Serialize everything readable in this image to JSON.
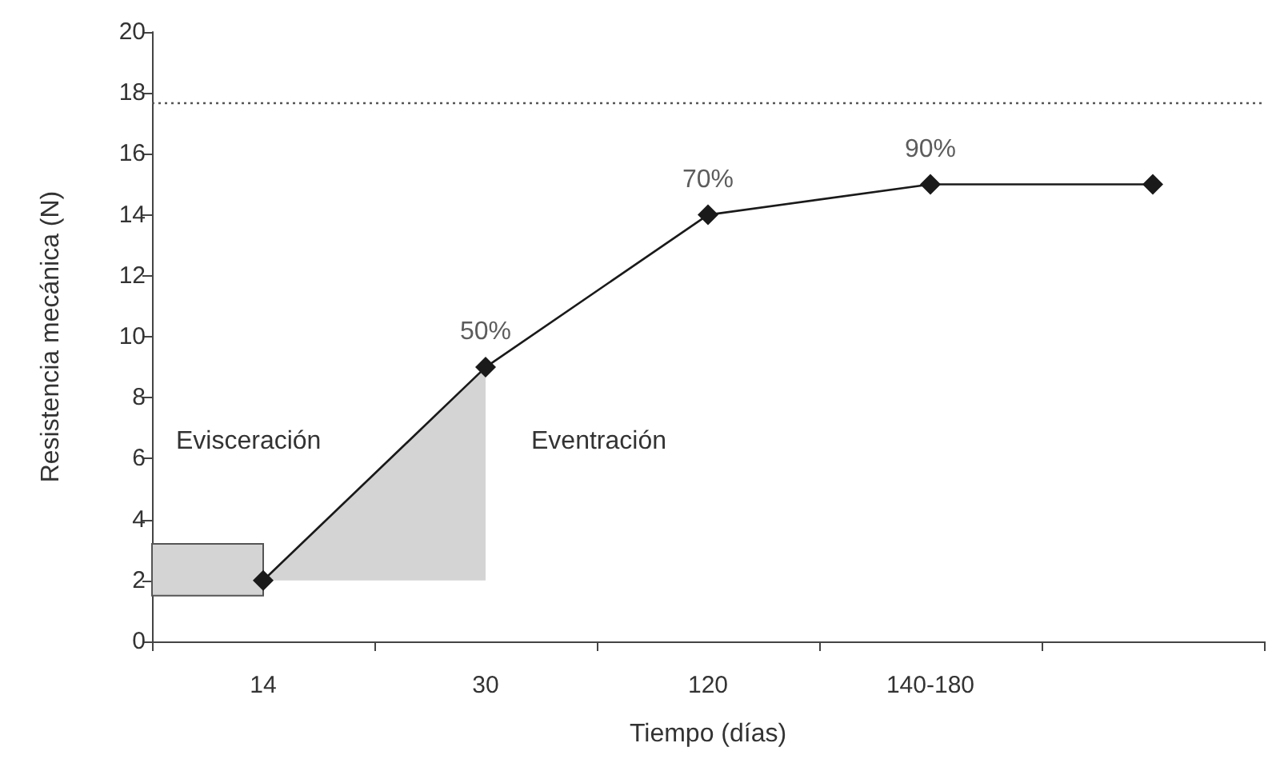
{
  "chart_data": {
    "type": "line",
    "xlabel": "Tiempo (días)",
    "ylabel": "Resistencia mecánica (N)",
    "categories": [
      "14",
      "30",
      "120",
      "140-180",
      null
    ],
    "series": [
      {
        "color": "#1a1a1a",
        "values": [
          2,
          9,
          14,
          15,
          15
        ],
        "lower": [
          2,
          2,
          null,
          null,
          null
        ],
        "upper": [
          2,
          9,
          null,
          null,
          null
        ],
        "marker": "diamond"
      }
    ],
    "ylim": [
      0,
      20
    ],
    "yticks": [
      0,
      2,
      4,
      6,
      8,
      10,
      12,
      14,
      16,
      18,
      20
    ],
    "grid": false,
    "ref_lines": [
      {
        "axis": "y",
        "value": 17.7,
        "line_style": "dotted",
        "color": "#555555"
      }
    ],
    "bands": [
      {
        "axis": "y",
        "from": 1.5,
        "to": 3.2,
        "color": "#d4d4d4"
      }
    ],
    "annotations": [
      {
        "text": "50%",
        "x": "30",
        "y": 9
      },
      {
        "text": "70%",
        "x": "120",
        "y": 14
      },
      {
        "text": "90%",
        "x": "140-180",
        "y": 15
      },
      "Evisceración",
      "Eventración"
    ]
  }
}
